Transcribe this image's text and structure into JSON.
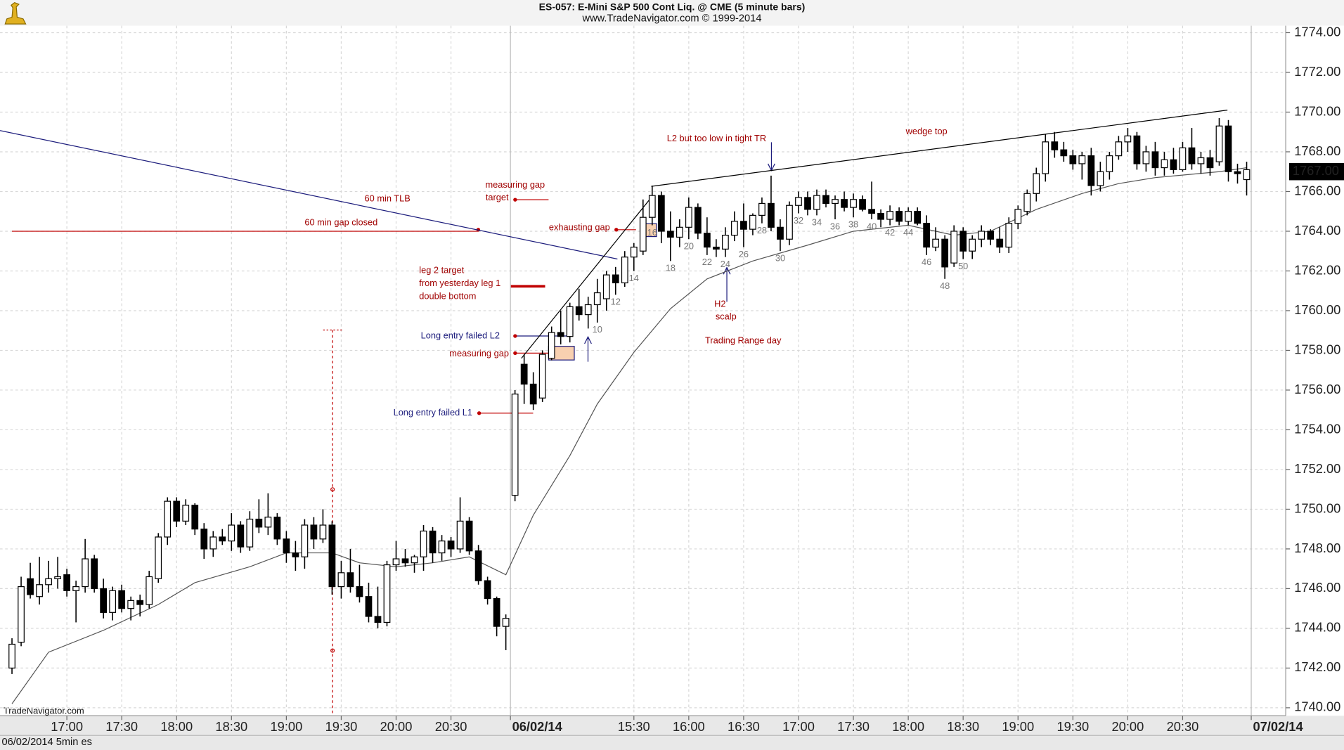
{
  "chart_data": {
    "type": "candlestick",
    "title": "ES-057:  E-Mini S&P 500 Cont Liq. @ CME  (5 minute bars)",
    "subtitle": "www.TradeNavigator.com © 1999-2014",
    "source": "TradeNavigator.com",
    "footer": "06/02/2014 5min es",
    "up_color": "#ffffff",
    "down_color": "#000000",
    "grid": true,
    "xlim": [
      -1.31,
      139.27
    ],
    "ylim": [
      1739.6,
      1774.35
    ],
    "yticks": [
      {
        "value": 1740,
        "label": "1740.00"
      },
      {
        "value": 1742,
        "label": "1742.00"
      },
      {
        "value": 1744,
        "label": "1744.00"
      },
      {
        "value": 1746,
        "label": "1746.00"
      },
      {
        "value": 1748,
        "label": "1748.00"
      },
      {
        "value": 1750,
        "label": "1750.00"
      },
      {
        "value": 1752,
        "label": "1752.00"
      },
      {
        "value": 1754,
        "label": "1754.00"
      },
      {
        "value": 1756,
        "label": "1756.00"
      },
      {
        "value": 1758,
        "label": "1758.00"
      },
      {
        "value": 1760,
        "label": "1760.00"
      },
      {
        "value": 1762,
        "label": "1762.00"
      },
      {
        "value": 1764,
        "label": "1764.00"
      },
      {
        "value": 1766,
        "label": "1766.00"
      },
      {
        "value": 1768,
        "label": "1768.00"
      },
      {
        "value": 1770,
        "label": "1770.00"
      },
      {
        "value": 1772,
        "label": "1772.00"
      },
      {
        "value": 1774,
        "label": "1774.00"
      }
    ],
    "xticks": [
      {
        "value": 6,
        "label": "17:00"
      },
      {
        "value": 12,
        "label": "17:30"
      },
      {
        "value": 18,
        "label": "18:00"
      },
      {
        "value": 24,
        "label": "18:30"
      },
      {
        "value": 30,
        "label": "19:00"
      },
      {
        "value": 36,
        "label": "19:30"
      },
      {
        "value": 42,
        "label": "20:00"
      },
      {
        "value": 48,
        "label": "20:30"
      },
      {
        "value": 54.5,
        "label": "06/02/14"
      },
      {
        "value": 68,
        "label": "15:30"
      },
      {
        "value": 74,
        "label": "16:00"
      },
      {
        "value": 80,
        "label": "16:30"
      },
      {
        "value": 86,
        "label": "17:00"
      },
      {
        "value": 92,
        "label": "17:30"
      },
      {
        "value": 98,
        "label": "18:00"
      },
      {
        "value": 104,
        "label": "18:30"
      },
      {
        "value": 110,
        "label": "19:00"
      },
      {
        "value": 116,
        "label": "19:30"
      },
      {
        "value": 122,
        "label": "20:00"
      },
      {
        "value": 128,
        "label": "20:30"
      },
      {
        "value": 135.5,
        "label": "07/02/14"
      }
    ],
    "last_price": {
      "value": 1767,
      "label": "1767.00"
    },
    "open": [
      1742,
      1743.3,
      1746.5,
      1745.6,
      1746.2,
      1746.5,
      1746.7,
      1745.9,
      1746.1,
      1747.5,
      1746,
      1744.8,
      1745.9,
      1745,
      1745.4,
      1745.2,
      1746.5,
      1748.6,
      1750.4,
      1749.4,
      1750.2,
      1749,
      1748,
      1748.6,
      1748.4,
      1749.2,
      1748.1,
      1749.5,
      1749.1,
      1749.6,
      1748.5,
      1747.8,
      1747.6,
      1749.2,
      1748.5,
      1749.2,
      1746.1,
      1746.8,
      1746.1,
      1745.6,
      1744.6,
      1744.3,
      1747.2,
      1747.5,
      1747.3,
      1747.6,
      1748.9,
      1747.8,
      1748.4,
      1748,
      1749.4,
      1747.9,
      1746.4,
      1745.5,
      1744.1,
      1750.7,
      1757.3,
      1756.3,
      1755.6,
      1757.6,
      1758.9,
      1758.7,
      1760.2,
      1759.8,
      1760.3,
      1760.6,
      1761.8,
      1761.4,
      1762.7,
      1763,
      1764.7,
      1765.8,
      1764,
      1763.7,
      1764.2,
      1765.2,
      1763.9,
      1763.2,
      1763.1,
      1763.8,
      1764.5,
      1764.1,
      1764.8,
      1765.4,
      1764.2,
      1763.6,
      1765.3,
      1765.7,
      1765.1,
      1765.8,
      1765.4,
      1765.6,
      1765.2,
      1765.6,
      1765.1,
      1764.9,
      1764.6,
      1765,
      1764.5,
      1765,
      1764.4,
      1763.2,
      1763.6,
      1762.4,
      1764,
      1763,
      1763.6,
      1764,
      1763.6,
      1763.2,
      1764.4,
      1765,
      1765.9,
      1766.9,
      1768.5,
      1768.1,
      1767.8,
      1767.4,
      1767.8,
      1766.3,
      1767,
      1767.8,
      1768.5,
      1768.8,
      1767.4,
      1768,
      1767.2,
      1767.6,
      1767.1,
      1768.2,
      1767.4,
      1767.7,
      1767.5,
      1769.3,
      1767,
      1766.6
    ],
    "high": [
      1743.5,
      1746.6,
      1747.3,
      1747.6,
      1747.4,
      1747.6,
      1747,
      1746.4,
      1748.5,
      1747.7,
      1746.5,
      1746.1,
      1746.2,
      1745.6,
      1745.7,
      1746.9,
      1748.8,
      1750.6,
      1750.6,
      1750.5,
      1750.3,
      1749.3,
      1748.9,
      1749,
      1749.8,
      1749.4,
      1749.9,
      1750.5,
      1750.8,
      1749.8,
      1748.9,
      1748.4,
      1749.5,
      1749.6,
      1750,
      1749.4,
      1747.4,
      1748,
      1747.2,
      1746.3,
      1746.1,
      1747.4,
      1748.4,
      1748,
      1747.7,
      1749.2,
      1749.1,
      1748.7,
      1748.6,
      1750.6,
      1749.6,
      1748.2,
      1746.6,
      1745.6,
      1744.7,
      1756,
      1757.8,
      1756.9,
      1758,
      1759.2,
      1760,
      1760.4,
      1761.1,
      1760.7,
      1761.6,
      1762,
      1762.2,
      1763,
      1763.4,
      1765.6,
      1766.3,
      1766,
      1765,
      1764.6,
      1765.7,
      1765.4,
      1764.7,
      1763.6,
      1764.2,
      1765,
      1765.4,
      1764.9,
      1765.7,
      1766.8,
      1764.6,
      1765.5,
      1766,
      1766,
      1766.1,
      1766.1,
      1765.8,
      1766,
      1765.9,
      1765.8,
      1766.5,
      1765.1,
      1765.3,
      1765.2,
      1765.2,
      1765.2,
      1764.8,
      1764.2,
      1763.8,
      1764.3,
      1764.2,
      1763.8,
      1764.3,
      1764.1,
      1764.2,
      1764.7,
      1765.3,
      1766.1,
      1767.2,
      1768.9,
      1769,
      1768.5,
      1768.1,
      1768,
      1768.2,
      1767.5,
      1768,
      1768.8,
      1769.2,
      1769,
      1768.3,
      1768.5,
      1768,
      1768.2,
      1768.5,
      1769.2,
      1768,
      1768.1,
      1769.7,
      1769.6,
      1767.4,
      1767.5
    ],
    "low": [
      1741.7,
      1743.1,
      1745.5,
      1745.2,
      1745.8,
      1746,
      1745.6,
      1744.3,
      1745.8,
      1745.8,
      1744.5,
      1744.4,
      1744.8,
      1744.4,
      1744.6,
      1745,
      1746.3,
      1748.2,
      1749.1,
      1749.2,
      1748.7,
      1747.5,
      1747.6,
      1748.2,
      1747.9,
      1747.8,
      1747.9,
      1748.8,
      1748.7,
      1748.2,
      1747.3,
      1746.9,
      1747,
      1748,
      1748.3,
      1745.7,
      1745.5,
      1745.8,
      1745.3,
      1744.3,
      1744,
      1744.1,
      1746.9,
      1747.1,
      1746.8,
      1746.9,
      1747.3,
      1747.4,
      1747.6,
      1747.8,
      1747.7,
      1746.2,
      1745.2,
      1743.6,
      1742.9,
      1750.4,
      1755.3,
      1755,
      1755.4,
      1757.5,
      1758.3,
      1758.4,
      1759.5,
      1759.1,
      1759.4,
      1760,
      1760.8,
      1761.2,
      1762,
      1762.8,
      1764.3,
      1763.4,
      1762.5,
      1763.2,
      1763.6,
      1763.6,
      1762.8,
      1762.7,
      1762.7,
      1763.5,
      1763.2,
      1763.8,
      1764.4,
      1764,
      1763,
      1763.3,
      1764.9,
      1764.8,
      1764.8,
      1765.2,
      1764.6,
      1765,
      1764.7,
      1765,
      1764.6,
      1764.2,
      1764.3,
      1764.3,
      1764.3,
      1764.3,
      1762.8,
      1763,
      1761.6,
      1762.2,
      1762.6,
      1762.6,
      1763.2,
      1763.3,
      1762.9,
      1762.9,
      1764.1,
      1764.8,
      1765.5,
      1766.5,
      1767.7,
      1767.5,
      1767.1,
      1766.6,
      1765.8,
      1766,
      1766.6,
      1767.6,
      1768,
      1767.1,
      1767,
      1766.8,
      1766.8,
      1766.9,
      1767,
      1767.1,
      1766.9,
      1766.8,
      1767.3,
      1766.5,
      1766.4,
      1765.8
    ],
    "close": [
      1743.2,
      1746.1,
      1745.7,
      1746.2,
      1746.5,
      1746.6,
      1745.9,
      1746.1,
      1747.5,
      1746,
      1744.8,
      1745.9,
      1745,
      1745.4,
      1745.2,
      1746.6,
      1748.6,
      1750.4,
      1749.4,
      1750.2,
      1749,
      1748,
      1748.6,
      1748.4,
      1749.2,
      1748.1,
      1749.5,
      1749.1,
      1749.6,
      1748.5,
      1747.8,
      1747.6,
      1749.2,
      1748.5,
      1749.2,
      1746.1,
      1746.8,
      1746.1,
      1745.6,
      1744.6,
      1744.3,
      1747.2,
      1747.5,
      1747.3,
      1747.6,
      1748.9,
      1747.8,
      1748.4,
      1748,
      1749.4,
      1747.9,
      1746.4,
      1745.5,
      1744.1,
      1744.5,
      1755.8,
      1756.3,
      1755.3,
      1757.8,
      1758.9,
      1758.7,
      1760.2,
      1759.8,
      1760.3,
      1760.9,
      1761.8,
      1761.4,
      1762.7,
      1763.2,
      1764.7,
      1765.8,
      1764,
      1763.7,
      1764.2,
      1765.2,
      1763.9,
      1763.2,
      1763.1,
      1763.8,
      1764.5,
      1764.1,
      1764.8,
      1765.4,
      1764.2,
      1763.6,
      1765.3,
      1765.7,
      1765.1,
      1765.8,
      1765.4,
      1765.6,
      1765.2,
      1765.6,
      1765.1,
      1764.9,
      1764.6,
      1765,
      1764.5,
      1765,
      1764.4,
      1763.2,
      1763.6,
      1762.2,
      1764,
      1763,
      1763.6,
      1764,
      1763.6,
      1763.2,
      1764.4,
      1765.1,
      1765.9,
      1766.9,
      1768.5,
      1768.1,
      1767.8,
      1767.4,
      1767.8,
      1766.3,
      1767,
      1767.8,
      1768.5,
      1768.8,
      1767.4,
      1768,
      1767.2,
      1767.6,
      1767.1,
      1768.2,
      1767.4,
      1767.7,
      1767.2,
      1769.3,
      1767,
      1766.9,
      1767.1
    ],
    "moving_average": {
      "color": "#555555",
      "x": [
        0,
        4,
        10,
        16,
        20,
        26,
        30,
        35,
        38,
        42,
        46,
        50,
        54,
        57,
        61,
        64,
        68,
        72,
        76,
        81,
        87,
        92,
        98,
        103,
        107,
        112,
        117,
        121,
        125,
        132,
        135
      ],
      "values": [
        1740.2,
        1742.8,
        1743.9,
        1745.2,
        1746.3,
        1747.1,
        1747.8,
        1747.8,
        1747.3,
        1747.1,
        1747.3,
        1747.6,
        1746.7,
        1749.7,
        1752.7,
        1755.3,
        1757.9,
        1760.1,
        1761.6,
        1762.5,
        1763.3,
        1764,
        1764.3,
        1763.8,
        1764,
        1765.1,
        1765.9,
        1766.4,
        1766.7,
        1767,
        1767.2
      ]
    },
    "trend_lines": [
      {
        "color": "#1c1c7c",
        "x": [
          -1.31,
          66.2
        ],
        "values": [
          1769.07,
          1762.6
        ]
      },
      {
        "color": "#000000",
        "x": [
          55.7,
          69.9
        ],
        "values": [
          1757.6,
          1765.7
        ]
      },
      {
        "color": "#000000",
        "x": [
          69.9,
          132.9
        ],
        "values": [
          1766.26,
          1770.1
        ]
      },
      {
        "color": "#c00000",
        "x": [
          0,
          51
        ],
        "values": [
          1764,
          1764
        ]
      }
    ],
    "bar_numbers": {
      "x": [
        64,
        66,
        68,
        70,
        72,
        74,
        76,
        78,
        80,
        82,
        84,
        86,
        88,
        90,
        92,
        94,
        96,
        98,
        100,
        102,
        104
      ],
      "labels": [
        10,
        12,
        14,
        16,
        18,
        20,
        22,
        24,
        26,
        28,
        30,
        32,
        34,
        36,
        38,
        40,
        42,
        44,
        46,
        48,
        50
      ]
    },
    "annotations": [
      {
        "text": "60 min TLB",
        "color": "#a00000"
      },
      {
        "text": "60  min gap closed",
        "color": "#a00000"
      },
      {
        "text": "measuring gap",
        "color": "#a00000"
      },
      {
        "text": "target",
        "color": "#a00000"
      },
      {
        "text": "exhausting gap",
        "color": "#a00000"
      },
      {
        "text": "leg 2 target",
        "color": "#a00000"
      },
      {
        "text": "from yesterday leg 1",
        "color": "#a00000"
      },
      {
        "text": "double bottom",
        "color": "#a00000"
      },
      {
        "text": "Long entry failed L2",
        "color": "#1c1c7c"
      },
      {
        "text": "measuring gap",
        "color": "#a00000"
      },
      {
        "text": "Long entry failed L1",
        "color": "#1c1c7c"
      },
      {
        "text": "L2 but too low in tight TR",
        "color": "#a00000"
      },
      {
        "text": "wedge top",
        "color": "#a00000"
      },
      {
        "text": "H2",
        "color": "#a00000"
      },
      {
        "text": "scalp",
        "color": "#a00000"
      },
      {
        "text": "Trading Range day",
        "color": "#a00000"
      }
    ]
  }
}
